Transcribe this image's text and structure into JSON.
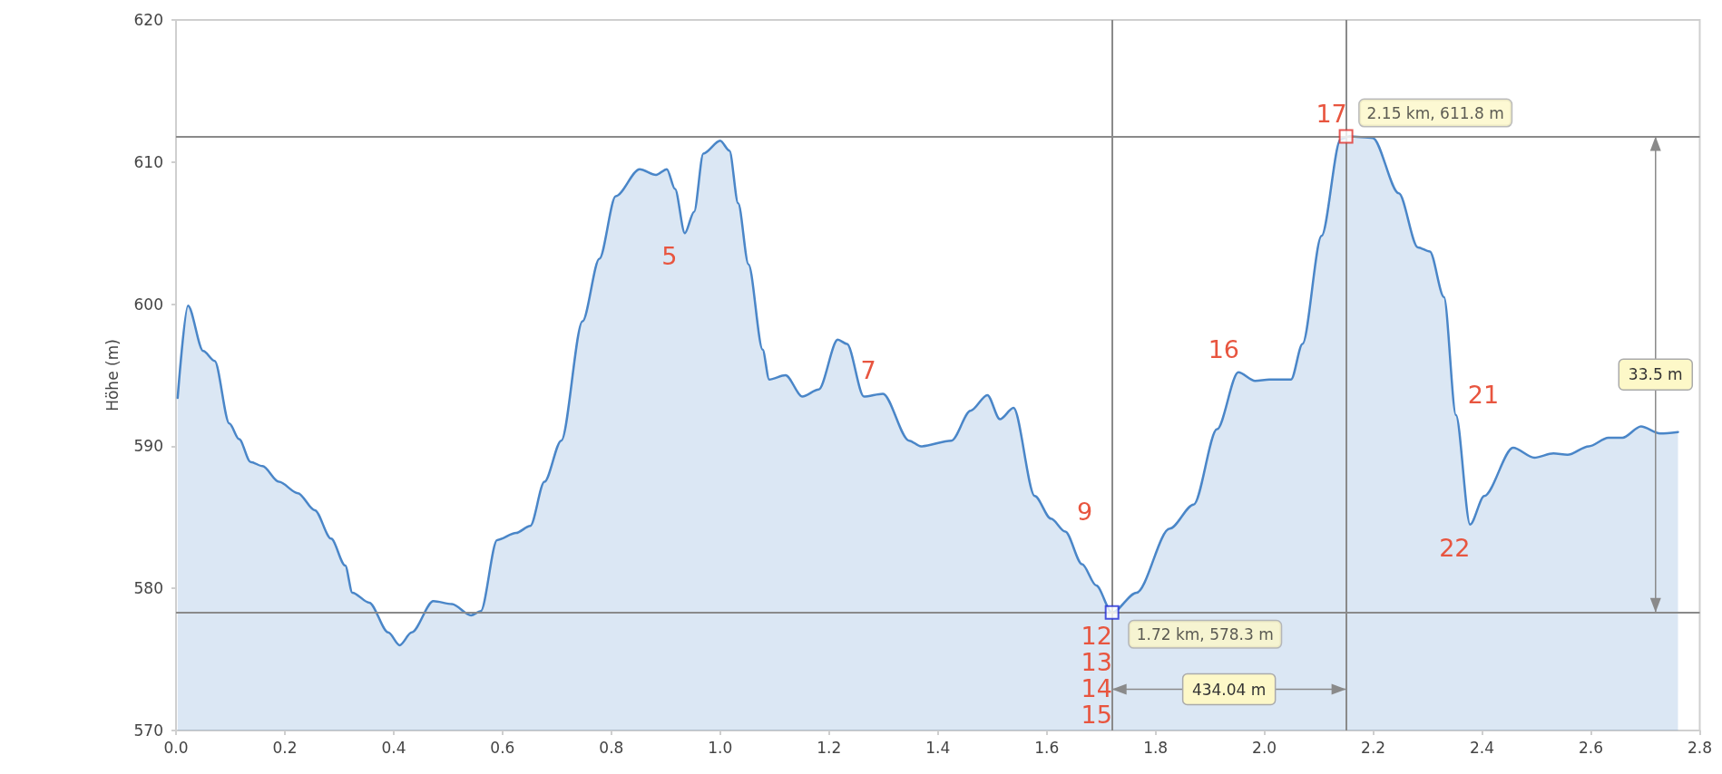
{
  "chart_data": {
    "type": "area",
    "ylabel": "Höhe (m)",
    "xlim": [
      0,
      2.8
    ],
    "ylim": [
      570,
      620
    ],
    "xticks": [
      {
        "value": 0,
        "label": "0.0"
      },
      0.2,
      0.4,
      0.6,
      0.8,
      {
        "value": 1,
        "label": "1.0"
      },
      1.2,
      1.4,
      1.6,
      1.8,
      {
        "value": 2,
        "label": "2.0"
      },
      2.2,
      2.4,
      2.6,
      2.8
    ],
    "yticks": [
      570,
      580,
      590,
      600,
      610,
      620
    ],
    "grid": false,
    "marker": "none",
    "line_style": "solid",
    "series": [
      {
        "color": "#4a86c8",
        "x": [
          0.003,
          0.022,
          0.05,
          0.071,
          0.098,
          0.116,
          0.137,
          0.159,
          0.189,
          0.224,
          0.255,
          0.285,
          0.311,
          0.324,
          0.355,
          0.39,
          0.411,
          0.433,
          0.473,
          0.507,
          0.542,
          0.56,
          0.59,
          0.625,
          0.651,
          0.677,
          0.708,
          0.747,
          0.778,
          0.808,
          0.852,
          0.882,
          0.902,
          0.917,
          0.935,
          0.952,
          0.969,
          1.0,
          1.017,
          1.033,
          1.052,
          1.078,
          1.09,
          1.12,
          1.151,
          1.181,
          1.216,
          1.233,
          1.264,
          1.299,
          1.347,
          1.369,
          1.425,
          1.46,
          1.491,
          1.514,
          1.539,
          1.578,
          1.608,
          1.634,
          1.665,
          1.691,
          1.72,
          1.765,
          1.826,
          1.87,
          1.913,
          1.952,
          1.983,
          2.009,
          2.049,
          2.07,
          2.105,
          2.14,
          2.156,
          2.199,
          2.247,
          2.282,
          2.304,
          2.33,
          2.352,
          2.378,
          2.404,
          2.457,
          2.496,
          2.531,
          2.557,
          2.596,
          2.632,
          2.658,
          2.692,
          2.727,
          2.76
        ],
        "values": [
          593.4,
          599.9,
          596.7,
          596.0,
          591.6,
          590.5,
          588.9,
          588.6,
          587.5,
          586.7,
          585.5,
          583.5,
          581.6,
          579.7,
          579.0,
          576.9,
          576.0,
          576.9,
          579.1,
          578.9,
          578.1,
          578.4,
          583.4,
          583.9,
          584.4,
          587.5,
          590.4,
          598.8,
          603.2,
          607.6,
          609.5,
          609.1,
          609.5,
          608.1,
          605.0,
          606.5,
          610.6,
          611.5,
          610.8,
          607.1,
          602.8,
          596.8,
          594.7,
          595.0,
          593.5,
          594.0,
          597.5,
          597.2,
          593.5,
          593.7,
          590.4,
          590.0,
          590.4,
          592.5,
          593.6,
          591.9,
          592.7,
          586.5,
          584.9,
          584.0,
          581.7,
          580.2,
          578.3,
          579.7,
          584.2,
          585.9,
          591.2,
          595.2,
          594.6,
          594.7,
          594.7,
          597.2,
          604.8,
          611.6,
          611.8,
          611.7,
          607.8,
          604.0,
          603.7,
          600.5,
          592.2,
          584.5,
          586.5,
          589.9,
          589.2,
          589.5,
          589.4,
          590.0,
          590.6,
          590.6,
          591.4,
          590.9,
          591.0
        ]
      },
      {
        "type": "scatter",
        "marker": "square",
        "x": [
          1.72,
          2.15
        ],
        "values": [
          578.3,
          611.8
        ],
        "colors": [
          "#1f2bd6",
          "#e0302a"
        ],
        "value_labels": [
          "1.72 km, 578.3 m",
          "2.15 km, 611.8 m"
        ]
      }
    ],
    "ref_lines": [
      {
        "axis": "x",
        "value": 1.72,
        "color": "#8a8a8a"
      },
      {
        "axis": "x",
        "value": 2.15,
        "color": "#8a8a8a"
      },
      {
        "axis": "y",
        "value": 578.3,
        "color": "#8a8a8a"
      },
      {
        "axis": "y",
        "value": 611.8,
        "color": "#8a8a8a"
      }
    ],
    "annotations": [
      "434.04 m",
      "33.5 m",
      {
        "text": "5",
        "x": 0.935,
        "y": 605.0
      },
      {
        "text": "7",
        "x": 1.299,
        "y": 593.7
      },
      {
        "text": "9",
        "x": 1.634,
        "y": 584.0
      },
      {
        "text": "12\n13\n14\n15",
        "x": 1.72,
        "y": 578.3
      },
      {
        "text": "16",
        "x": 1.952,
        "y": 595.2
      },
      {
        "text": "17",
        "x": 2.15,
        "y": 611.8
      },
      {
        "text": "21",
        "x": 2.352,
        "y": 592.2
      },
      {
        "text": "22",
        "x": 2.378,
        "y": 584.5
      }
    ]
  }
}
